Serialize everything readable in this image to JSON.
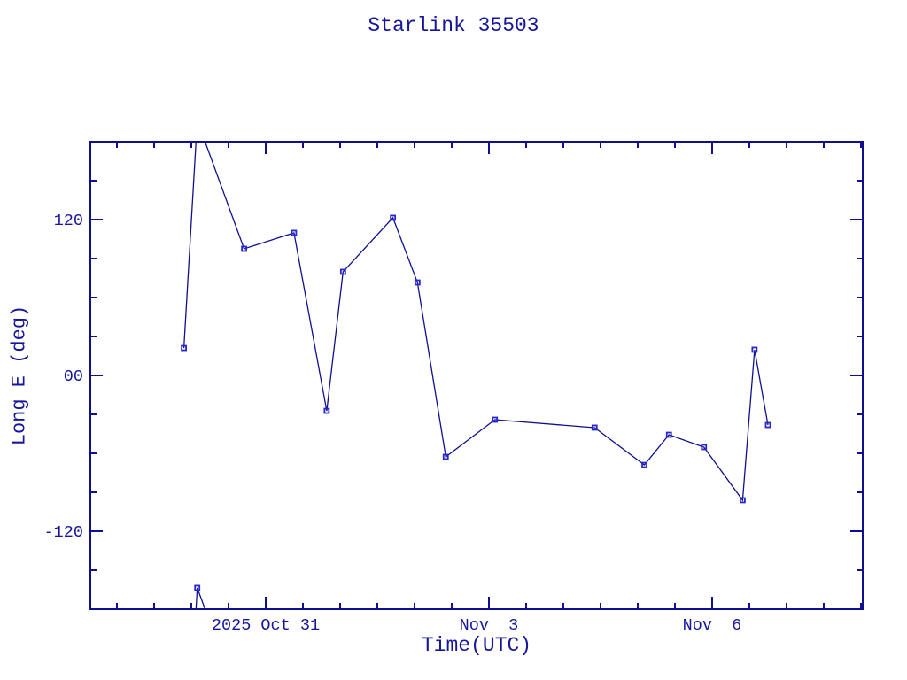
{
  "chart_data": {
    "type": "line",
    "title": "Starlink 35503",
    "xlabel": "Time(UTC)",
    "ylabel": "Long E (deg)",
    "x_unit": "days since 2025 Oct 31 00:00 UTC",
    "xlim": [
      -2.357,
      8.024
    ],
    "ylim": [
      -180,
      180
    ],
    "wrap_at_deg": 180,
    "grid": false,
    "legend": false,
    "x_major_ticks": [
      {
        "value": 0,
        "label": "2025 Oct 31"
      },
      {
        "value": 3,
        "label": "Nov  3"
      },
      {
        "value": 6,
        "label": "Nov  6"
      }
    ],
    "x_minor_step": 0.5,
    "y_major_ticks": [
      {
        "value": 120,
        "label": "120"
      },
      {
        "value": 0,
        "label": "00"
      },
      {
        "value": -120,
        "label": "-120"
      }
    ],
    "y_minor_step": 30,
    "series": [
      {
        "name": "Long E",
        "marker": "open-square",
        "points": [
          {
            "t": -1.1,
            "lon": 21.1
          },
          {
            "t": -0.92,
            "lon": -163.6
          },
          {
            "t": -0.29,
            "lon": 97.5
          },
          {
            "t": 0.38,
            "lon": 109.8
          },
          {
            "t": 0.82,
            "lon": -27.3
          },
          {
            "t": 1.04,
            "lon": 79.8
          },
          {
            "t": 1.71,
            "lon": 121.4
          },
          {
            "t": 2.04,
            "lon": 71.6
          },
          {
            "t": 2.42,
            "lon": -62.7
          },
          {
            "t": 3.08,
            "lon": -34.1
          },
          {
            "t": 4.42,
            "lon": -40.2
          },
          {
            "t": 5.09,
            "lon": -68.9
          },
          {
            "t": 5.42,
            "lon": -45.7
          },
          {
            "t": 5.89,
            "lon": -55.2
          },
          {
            "t": 6.41,
            "lon": -96.1
          },
          {
            "t": 6.57,
            "lon": 19.8
          },
          {
            "t": 6.75,
            "lon": -38.2
          }
        ]
      }
    ],
    "colors": {
      "frame": "#10108e",
      "line": "#10108e",
      "marker": "#2727cd",
      "text": "#16169c"
    }
  }
}
